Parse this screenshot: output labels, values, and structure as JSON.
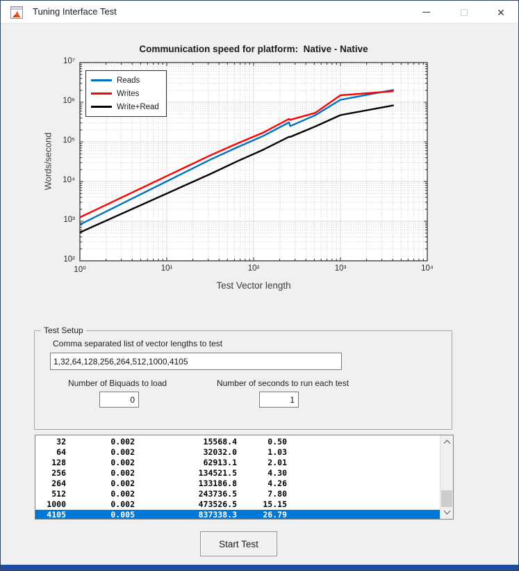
{
  "window": {
    "title": "Tuning Interface Test",
    "icon": "matlab-logo-icon"
  },
  "colors": {
    "selection": "#0078d7",
    "accent_border": "#1c4da0",
    "series_blue": "#0072bd",
    "series_red": "#ff0000",
    "series_black": "#000000"
  },
  "chart_data": {
    "type": "line",
    "title": "Communication speed for platform:  Native - Native",
    "xlabel": "Test Vector length",
    "ylabel": "Words/second",
    "xscale": "log",
    "yscale": "log",
    "xlim": [
      1,
      10000
    ],
    "ylim": [
      100,
      10000000
    ],
    "grid": "major+minor",
    "legend_position": "top-left",
    "x_tick_labels": [
      "10⁰",
      "10¹",
      "10²",
      "10³",
      "10⁴"
    ],
    "y_tick_labels": [
      "10⁷",
      "10⁶",
      "10⁵",
      "10⁴",
      "10³",
      "10²"
    ],
    "x": [
      1,
      32,
      64,
      128,
      256,
      264,
      512,
      1000,
      4105
    ],
    "series": [
      {
        "name": "Reads",
        "color": "#0072bd",
        "values": [
          820,
          36000,
          72000,
          140000,
          310000,
          250000,
          470000,
          1150000,
          2050000
        ]
      },
      {
        "name": "Writes",
        "color": "#ff0000",
        "values": [
          1250,
          46000,
          90000,
          170000,
          380000,
          360000,
          540000,
          1500000,
          1900000
        ]
      },
      {
        "name": "Write+Read",
        "color": "#000000",
        "values": [
          520,
          15568.4,
          32032.0,
          62913.1,
          134521.5,
          133186.8,
          243736.5,
          473526.5,
          837338.3
        ]
      }
    ]
  },
  "test_setup": {
    "group_label": "Test Setup",
    "vector_lengths": {
      "label": "Comma separated list of vector lengths to test",
      "value": "1,32,64,128,256,264,512,1000,4105"
    },
    "biquads": {
      "label": "Number of Biquads to load",
      "value": "0"
    },
    "seconds": {
      "label": "Number of seconds to run each test",
      "value": "1"
    }
  },
  "results": {
    "rows": [
      [
        "32",
        "0.002",
        "15568.4",
        "0.50"
      ],
      [
        "64",
        "0.002",
        "32032.0",
        "1.03"
      ],
      [
        "128",
        "0.002",
        "62913.1",
        "2.01"
      ],
      [
        "256",
        "0.002",
        "134521.5",
        "4.30"
      ],
      [
        "264",
        "0.002",
        "133186.8",
        "4.26"
      ],
      [
        "512",
        "0.002",
        "243736.5",
        "7.80"
      ],
      [
        "1000",
        "0.002",
        "473526.5",
        "15.15"
      ],
      [
        "4105",
        "0.005",
        "837338.3",
        "26.79"
      ]
    ],
    "selected_row_index": 7
  },
  "start_button": {
    "label": "Start Test"
  }
}
